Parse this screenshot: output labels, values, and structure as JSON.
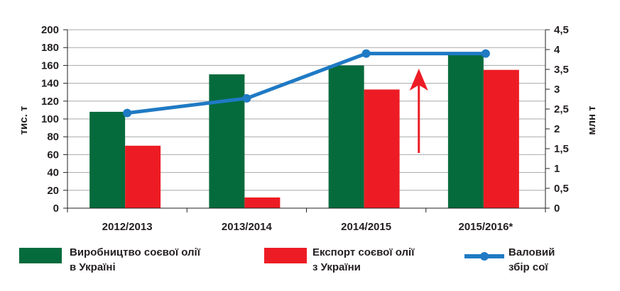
{
  "chart_data": {
    "type": "bar",
    "categories": [
      "2012/2013",
      "2013/2014",
      "2014/2015",
      "2015/2016*"
    ],
    "series": [
      {
        "name": "Виробництво соєвої олії в Україні",
        "type": "bar",
        "axis": "left",
        "color": "#056b3c",
        "values": [
          108,
          150,
          160,
          172
        ]
      },
      {
        "name": "Експорт соєвої олії з України",
        "type": "bar",
        "axis": "left",
        "color": "#ed1c24",
        "values": [
          70,
          12,
          133,
          155
        ]
      },
      {
        "name": "Валовий збір сої",
        "type": "line",
        "axis": "right",
        "color": "#1f7ac4",
        "values": [
          2.4,
          2.77,
          3.9,
          3.9
        ]
      }
    ],
    "ylabel": "тис. т",
    "y2label": "млн т",
    "ylim": [
      0,
      200
    ],
    "y2lim": [
      0,
      4.5
    ],
    "yticks": [
      "0",
      "20",
      "40",
      "60",
      "80",
      "100",
      "120",
      "140",
      "160",
      "180",
      "200"
    ],
    "y2ticks": [
      "0",
      "0,5",
      "1",
      "1,5",
      "2",
      "2,5",
      "3",
      "3,5",
      "4",
      "4,5"
    ],
    "grid": true,
    "legend_position": "bottom",
    "annotation": {
      "type": "up-arrow",
      "color": "#ed1c24"
    }
  },
  "legend": [
    {
      "line1": "Виробництво соєвої олії",
      "line2": "в Україні"
    },
    {
      "line1": "Експорт соєвої олії",
      "line2": "з України"
    },
    {
      "line1": "Валовий",
      "line2": "збір сої"
    }
  ]
}
